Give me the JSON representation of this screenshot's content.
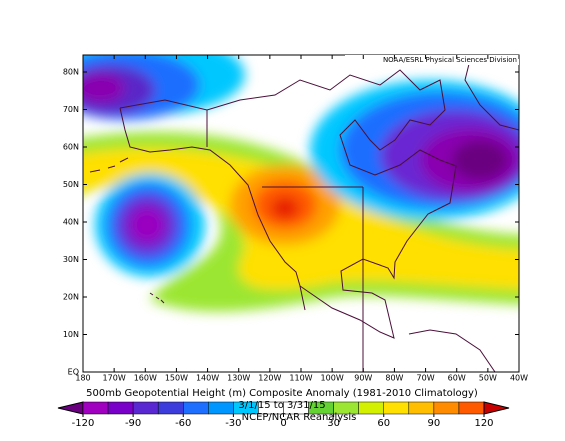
{
  "header": {
    "credit": "NOAA/ESRL Physical Sciences Division"
  },
  "map": {
    "lat_labels": [
      "EQ",
      "10N",
      "20N",
      "30N",
      "40N",
      "50N",
      "60N",
      "70N",
      "80N"
    ],
    "lon_labels": [
      "180",
      "170W",
      "160W",
      "150W",
      "140W",
      "130W",
      "120W",
      "110W",
      "100W",
      "90W",
      "80W",
      "70W",
      "60W",
      "50W",
      "40W"
    ]
  },
  "footer": {
    "title": "500mb Geopotential Height (m) Composite Anomaly (1981-2010 Climatology)",
    "dates": "3/1/15 to 3/31/15",
    "source": "NCEP/NCAR Reanalysis"
  },
  "colorbar": {
    "ticks": [
      -120,
      -90,
      -60,
      -30,
      0,
      30,
      60,
      90,
      120
    ]
  }
}
